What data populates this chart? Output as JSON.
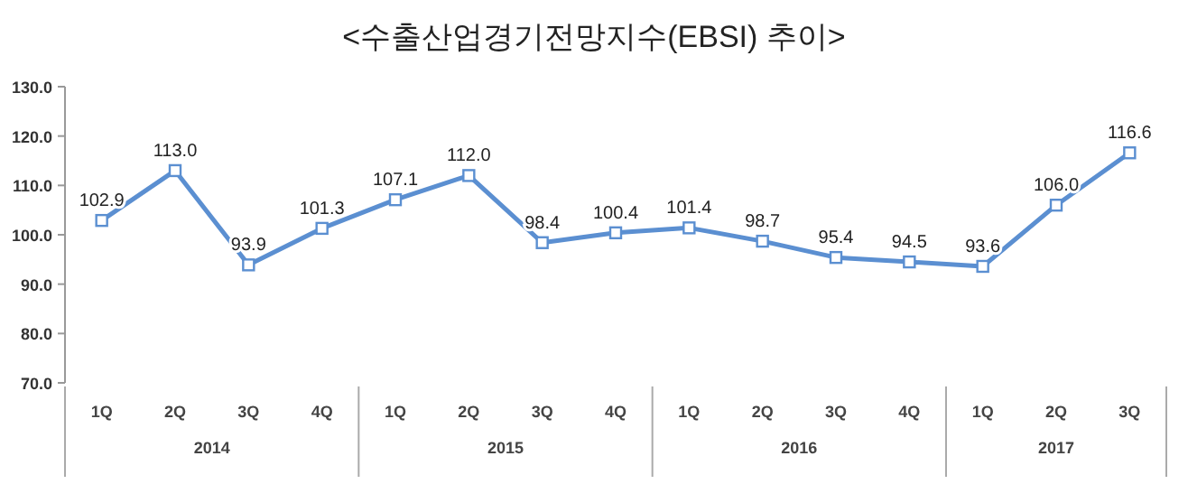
{
  "chart_data": {
    "type": "line",
    "title": "<수출산업경기전망지수(EBSI)  추이>",
    "categories": [
      "1Q",
      "2Q",
      "3Q",
      "4Q",
      "1Q",
      "2Q",
      "3Q",
      "4Q",
      "1Q",
      "2Q",
      "3Q",
      "4Q",
      "1Q",
      "2Q",
      "3Q"
    ],
    "series": [
      {
        "color": "#5b8fd1",
        "values": [
          102.9,
          113.0,
          93.9,
          101.3,
          107.1,
          112.0,
          98.4,
          100.4,
          101.4,
          98.7,
          95.4,
          94.5,
          93.6,
          106.0,
          116.6
        ],
        "value_labels": [
          "102.9",
          "113.0",
          "93.9",
          "101.3",
          "107.1",
          "112.0",
          "98.4",
          "100.4",
          "101.4",
          "98.7",
          "95.4",
          "94.5",
          "93.6",
          "106.0",
          "116.6"
        ]
      }
    ],
    "annotations": [
      "2014",
      "2015",
      "2016",
      "2017"
    ],
    "ylim": [
      70,
      130
    ],
    "yticks": [
      {
        "value": 70,
        "label": "70.0"
      },
      {
        "value": 80,
        "label": "80.0"
      },
      {
        "value": 90,
        "label": "90.0"
      },
      {
        "value": 100,
        "label": "100.0"
      },
      {
        "value": 110,
        "label": "110.0"
      },
      {
        "value": 120,
        "label": "120.0"
      },
      {
        "value": 130,
        "label": "130.0"
      }
    ],
    "marker": "square",
    "line_style": "solid",
    "grid": false
  }
}
